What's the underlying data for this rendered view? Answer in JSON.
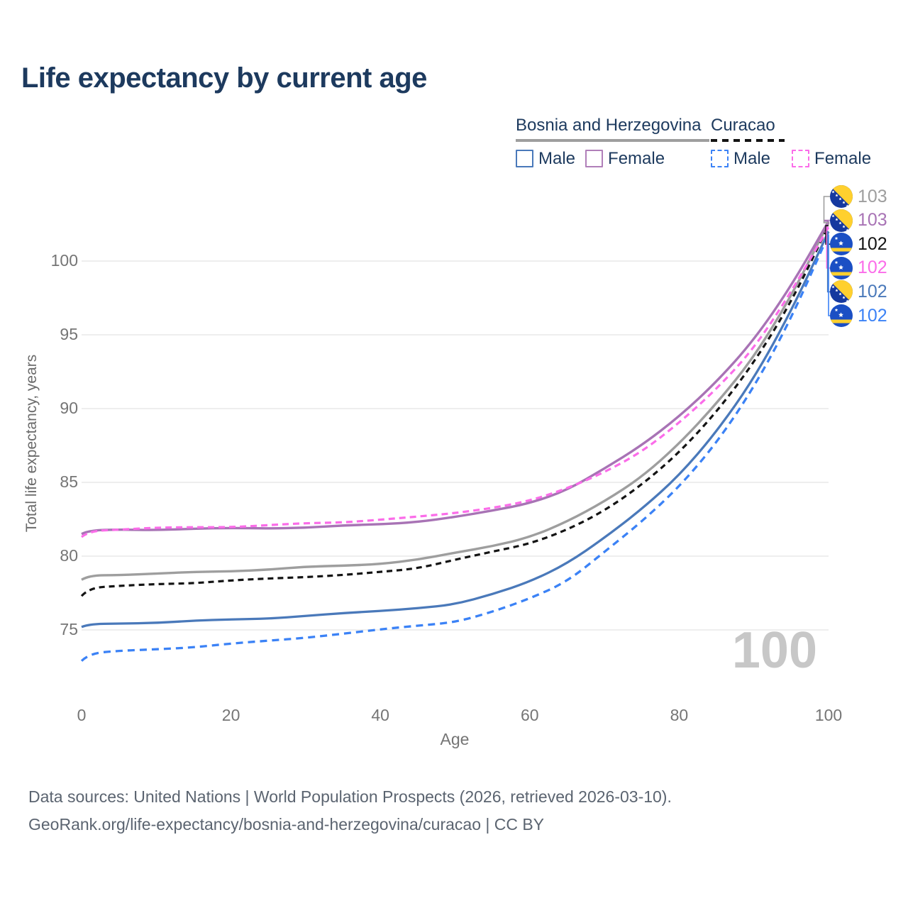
{
  "header": {
    "title": "Life expectancy by current age"
  },
  "legend": {
    "groups": [
      {
        "name": "Bosnia and Herzegovina",
        "line_style": "solid",
        "underline_color": "#9e9e9e",
        "items": [
          {
            "label": "Male",
            "color": "#4a79ba",
            "dashed": false
          },
          {
            "label": "Female",
            "color": "#b07fb9",
            "dashed": false
          }
        ]
      },
      {
        "name": "Curacao",
        "line_style": "dashed",
        "underline_color": "#141414",
        "items": [
          {
            "label": "Male",
            "color": "#3b82f6",
            "dashed": true
          },
          {
            "label": "Female",
            "color": "#fb6ce9",
            "dashed": true
          }
        ]
      }
    ]
  },
  "chart_data": {
    "type": "line",
    "title": "Life expectancy by current age",
    "xlabel": "Age",
    "ylabel": "Total life expectancy, years",
    "x_ticks": [
      0,
      20,
      40,
      60,
      80,
      100
    ],
    "y_ticks": [
      75,
      80,
      85,
      90,
      95,
      100
    ],
    "xlim": [
      0,
      100
    ],
    "ylim": [
      72,
      104
    ],
    "grid": "horizontal",
    "watermark": "100",
    "x": [
      0,
      1,
      5,
      10,
      15,
      20,
      25,
      30,
      35,
      40,
      45,
      50,
      55,
      60,
      65,
      70,
      75,
      80,
      85,
      90,
      95,
      100
    ],
    "series": [
      {
        "id": "bih-total",
        "name": "Bosnia and Herzegovina — Total",
        "color": "#9e9e9e",
        "dash": null,
        "width": 3.4,
        "values": [
          78.4,
          78.7,
          78.75,
          78.8,
          78.9,
          79.0,
          79.1,
          79.25,
          79.35,
          79.5,
          79.75,
          80.2,
          80.7,
          81.3,
          82.3,
          83.7,
          85.4,
          87.6,
          90.3,
          93.5,
          97.6,
          102.6
        ],
        "end_label": {
          "value": "103",
          "color": "#9e9e9e",
          "flag": "bih"
        }
      },
      {
        "id": "bih-female",
        "name": "Bosnia and Herzegovina — Female",
        "color": "#a873b5",
        "dash": null,
        "width": 3.4,
        "values": [
          81.5,
          81.75,
          81.8,
          81.8,
          81.85,
          81.88,
          81.9,
          81.95,
          82.05,
          82.15,
          82.35,
          82.65,
          83.05,
          83.6,
          84.5,
          85.9,
          87.5,
          89.5,
          91.8,
          94.6,
          98.3,
          102.7
        ],
        "end_label": {
          "value": "103",
          "color": "#a873b5",
          "flag": "bih"
        }
      },
      {
        "id": "cur-total",
        "name": "Curacao — Total",
        "color": "#141414",
        "dash": "8 6",
        "width": 3.2,
        "values": [
          77.3,
          77.85,
          77.95,
          78.1,
          78.2,
          78.35,
          78.45,
          78.6,
          78.75,
          78.9,
          79.15,
          79.8,
          80.3,
          80.8,
          81.8,
          83.1,
          84.8,
          87.0,
          89.8,
          93.1,
          97.2,
          102.4
        ],
        "end_label": {
          "value": "102",
          "color": "#141414",
          "flag": "cur"
        }
      },
      {
        "id": "cur-female",
        "name": "Curacao — Female",
        "color": "#fb6ce9",
        "dash": "9 6",
        "width": 3.2,
        "values": [
          81.3,
          81.7,
          81.82,
          81.9,
          81.95,
          82.0,
          82.1,
          82.2,
          82.3,
          82.5,
          82.65,
          82.9,
          83.3,
          83.75,
          84.55,
          85.7,
          87.1,
          89.0,
          91.3,
          94.1,
          97.9,
          102.3
        ],
        "end_label": {
          "value": "102",
          "color": "#fb6ce9",
          "flag": "cur"
        }
      },
      {
        "id": "bih-male",
        "name": "Bosnia and Herzegovina — Male",
        "color": "#4a79ba",
        "dash": null,
        "width": 3.3,
        "values": [
          75.2,
          75.4,
          75.45,
          75.5,
          75.6,
          75.7,
          75.8,
          75.95,
          76.1,
          76.3,
          76.5,
          76.7,
          77.4,
          78.3,
          79.5,
          81.2,
          83.2,
          85.5,
          88.4,
          92.0,
          96.6,
          102.0
        ],
        "end_label": {
          "value": "102",
          "color": "#4a79ba",
          "flag": "bih"
        }
      },
      {
        "id": "cur-male",
        "name": "Curacao — Male",
        "color": "#3b82f6",
        "dash": "10 7",
        "width": 3.3,
        "values": [
          72.9,
          73.4,
          73.55,
          73.7,
          73.85,
          74.05,
          74.25,
          74.5,
          74.75,
          75.0,
          75.3,
          75.55,
          76.2,
          77.1,
          78.3,
          80.3,
          82.3,
          84.7,
          87.7,
          91.4,
          96.1,
          101.8
        ],
        "end_label": {
          "value": "102",
          "color": "#3b82f6",
          "flag": "cur"
        }
      }
    ],
    "flag_colors": {
      "bih": {
        "blue": "#16399f",
        "yellow": "#ffd02e",
        "star": "#ffffff"
      },
      "cur": {
        "blue": "#1b4fc4",
        "yellow": "#ffd02e",
        "star": "#ffffff"
      }
    }
  },
  "footer": {
    "line1": "Data sources: United Nations | World Population Prospects (2026, retrieved 2026-03-10).",
    "line2": "GeoRank.org/life-expectancy/bosnia-and-herzegovina/curacao | CC BY"
  }
}
